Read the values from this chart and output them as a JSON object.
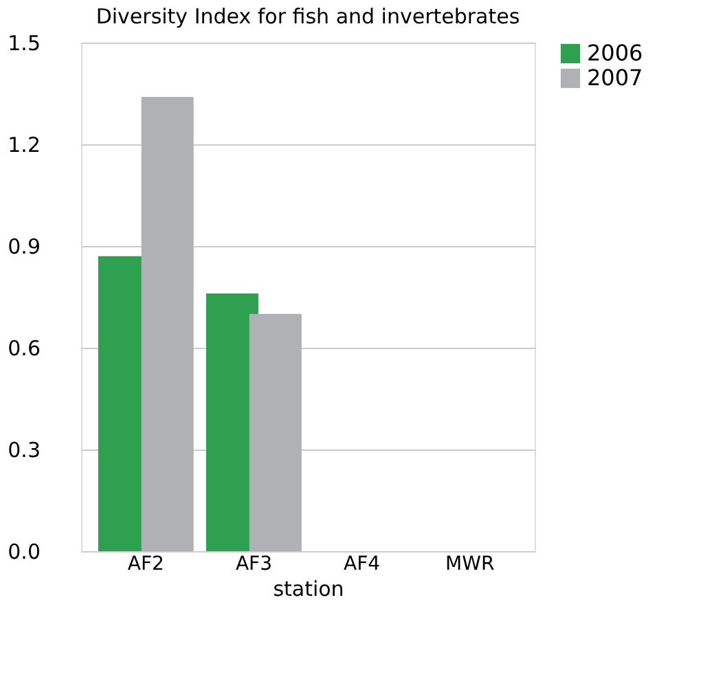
{
  "chart_data": {
    "type": "bar",
    "title": "Diversity Index for fish and invertebrates",
    "xlabel": "station",
    "categories": [
      "AF2",
      "AF3",
      "AF4",
      "MWR"
    ],
    "series": [
      {
        "name": "2006",
        "color": "#2ea04f",
        "values": [
          0.87,
          0.76,
          0.0,
          0.0
        ]
      },
      {
        "name": "2007",
        "color": "#b0b1b5",
        "values": [
          1.34,
          0.7,
          0.0,
          0.0
        ]
      }
    ],
    "ylim": [
      0,
      1.5
    ],
    "yticks": [
      {
        "value": 0,
        "label": "0.0"
      },
      {
        "value": 0.3,
        "label": "0.3"
      },
      {
        "value": 0.6,
        "label": "0.6"
      },
      {
        "value": 0.9,
        "label": "0.9"
      },
      {
        "value": 1.2,
        "label": "1.2"
      },
      {
        "value": 1.5,
        "label": "1.5"
      }
    ],
    "grid": "y",
    "legend": "right"
  }
}
